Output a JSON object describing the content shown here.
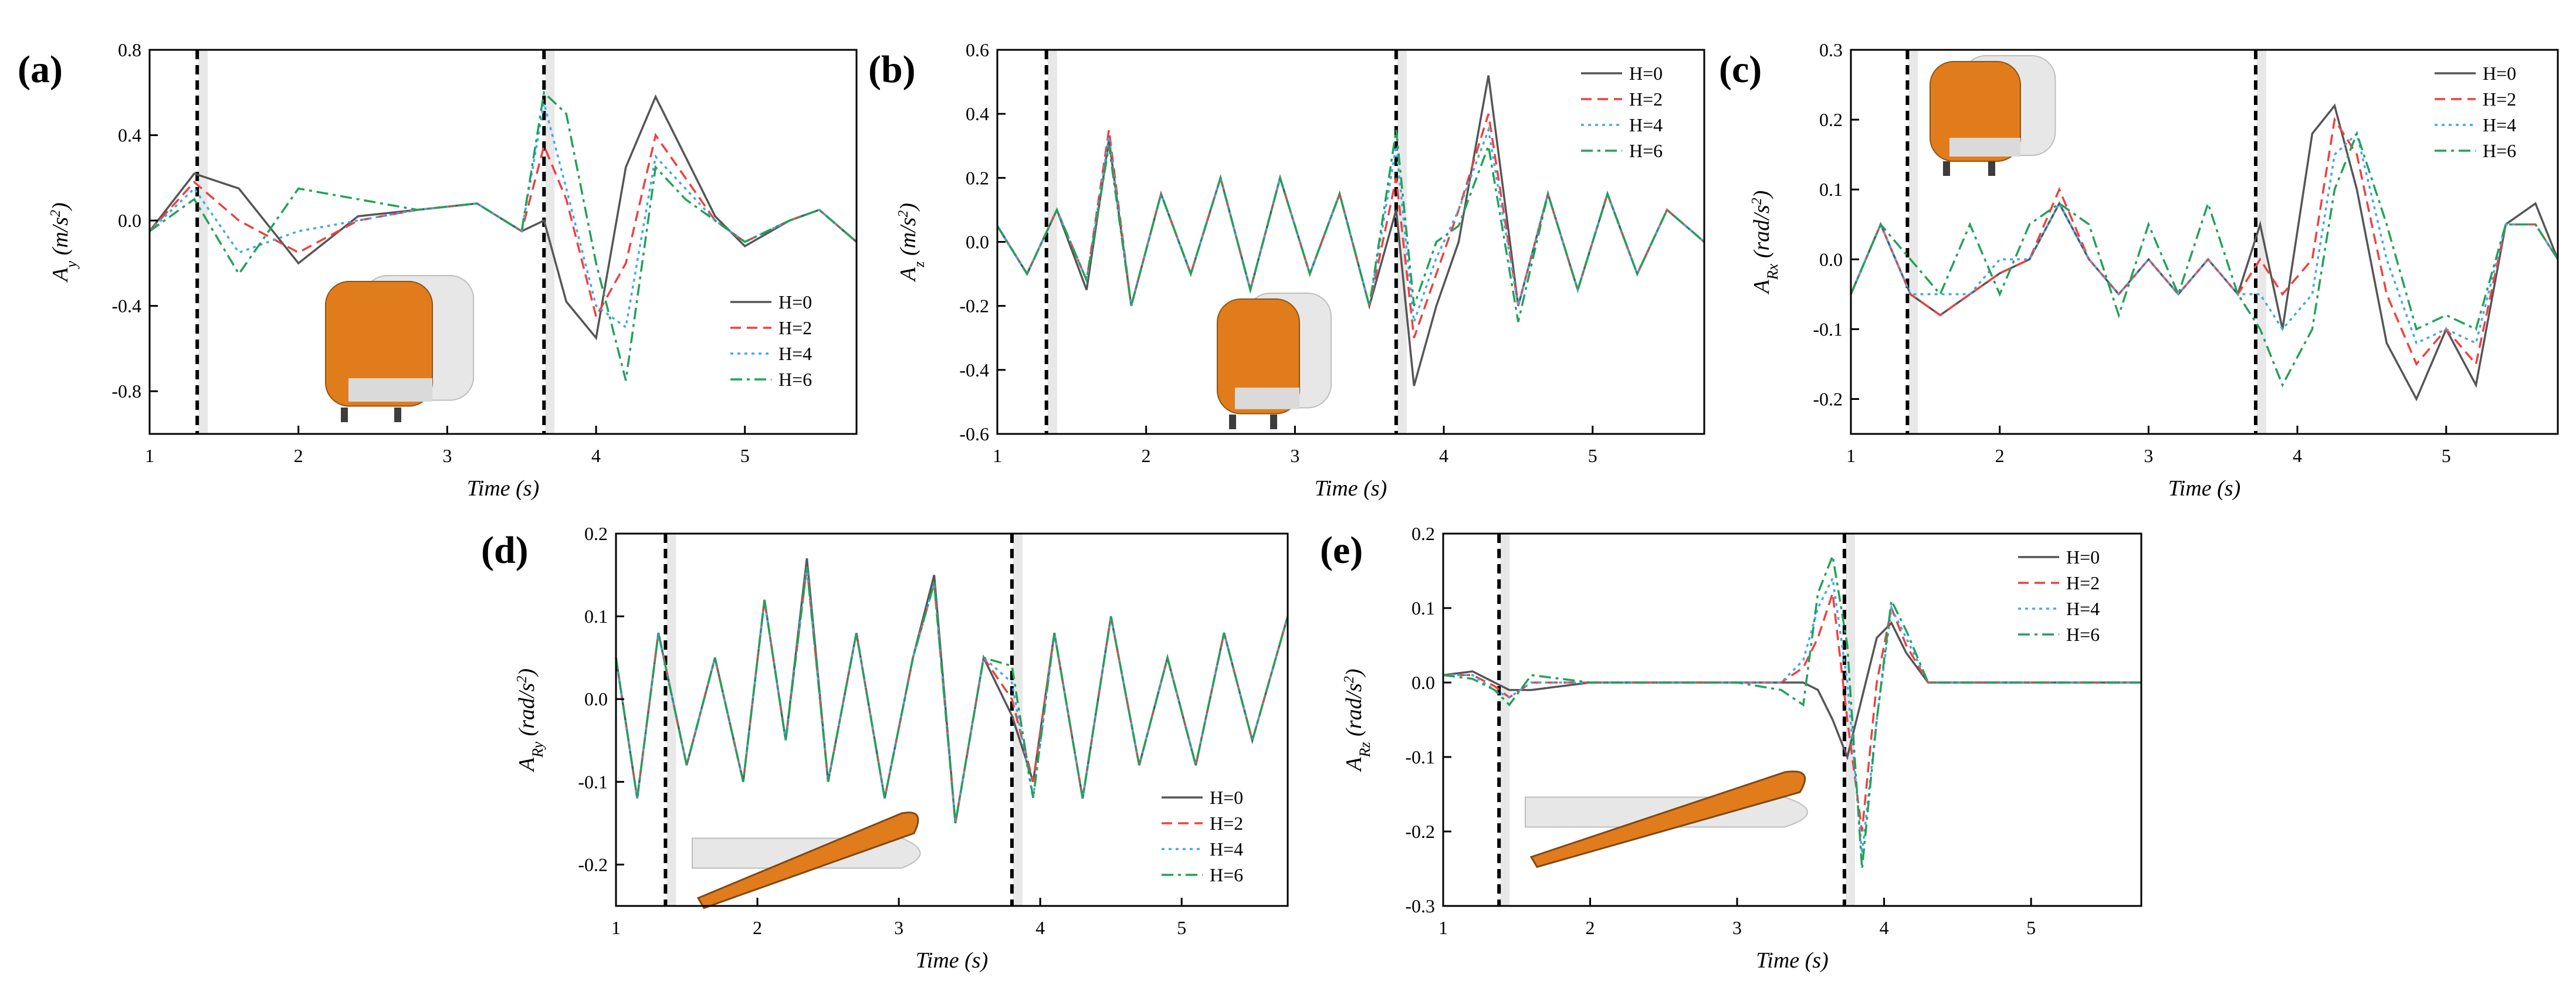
{
  "figure": {
    "colors": {
      "H=0": "#555555",
      "H=2": "#ef4040",
      "H=4": "#3ea8ef",
      "H=6": "#21a15a",
      "marker": "#000000",
      "train": "#e07510"
    }
  },
  "chart_data": [
    {
      "panel": "(a)",
      "type": "line",
      "title": "",
      "xlabel": "Time (s)",
      "ylabel_main": "A",
      "ylabel_sub": "y",
      "ylabel_unit": "(m/s",
      "ylabel_unit_end": ")",
      "xlim": [
        1,
        5.75
      ],
      "ylim": [
        -1.0,
        0.8
      ],
      "xticks": [
        1,
        2,
        3,
        4,
        5
      ],
      "xtick_labels": [
        "1",
        "2",
        "3",
        "4",
        "5"
      ],
      "yticks": [
        -0.8,
        -0.4,
        0.0,
        0.4,
        0.8
      ],
      "ytick_labels": [
        "-0.8",
        "-0.4",
        "0.0",
        "0.4",
        "0.8"
      ],
      "markers": [
        1.32,
        3.65
      ],
      "legend": "bottom-right",
      "legend_entries": [
        "H=0",
        "H=2",
        "H=4",
        "H=6"
      ],
      "x": [
        1.0,
        1.3,
        1.6,
        2.0,
        2.4,
        2.8,
        3.2,
        3.5,
        3.65,
        3.8,
        4.0,
        4.2,
        4.4,
        4.6,
        4.8,
        5.0,
        5.3,
        5.5,
        5.75
      ],
      "series": [
        {
          "name": "H=0",
          "values": [
            -0.05,
            0.22,
            0.15,
            -0.2,
            0.02,
            0.05,
            0.08,
            -0.05,
            0.0,
            -0.38,
            -0.55,
            0.25,
            0.58,
            0.3,
            0.02,
            -0.12,
            0.0,
            0.05,
            -0.1
          ]
        },
        {
          "name": "H=2",
          "values": [
            -0.05,
            0.18,
            0.0,
            -0.15,
            0.0,
            0.05,
            0.08,
            -0.05,
            0.35,
            0.1,
            -0.45,
            -0.2,
            0.4,
            0.2,
            0.0,
            -0.1,
            0.0,
            0.05,
            -0.1
          ]
        },
        {
          "name": "H=4",
          "values": [
            -0.05,
            0.15,
            -0.15,
            -0.05,
            0.0,
            0.05,
            0.08,
            -0.05,
            0.55,
            0.15,
            -0.4,
            -0.5,
            0.3,
            0.15,
            0.0,
            -0.1,
            0.0,
            0.05,
            -0.1
          ]
        },
        {
          "name": "H=6",
          "values": [
            -0.05,
            0.1,
            -0.25,
            0.15,
            0.1,
            0.05,
            0.08,
            -0.05,
            0.6,
            0.5,
            -0.2,
            -0.75,
            0.25,
            0.1,
            0.0,
            -0.1,
            0.0,
            0.05,
            -0.1
          ]
        }
      ]
    },
    {
      "panel": "(b)",
      "type": "line",
      "title": "",
      "xlabel": "Time (s)",
      "ylabel_main": "A",
      "ylabel_sub": "z",
      "ylabel_unit": "(m/s",
      "ylabel_unit_end": ")",
      "xlim": [
        1,
        5.75
      ],
      "ylim": [
        -0.6,
        0.6
      ],
      "xticks": [
        1,
        2,
        3,
        4,
        5
      ],
      "xtick_labels": [
        "1",
        "2",
        "3",
        "4",
        "5"
      ],
      "yticks": [
        -0.6,
        -0.4,
        -0.2,
        0.0,
        0.2,
        0.4,
        0.6
      ],
      "ytick_labels": [
        "-0.6",
        "-0.4",
        "-0.2",
        "0.0",
        "0.2",
        "0.4",
        "0.6"
      ],
      "markers": [
        1.33,
        3.68
      ],
      "legend": "top-right",
      "legend_entries": [
        "H=0",
        "H=2",
        "H=4",
        "H=6"
      ],
      "x": [
        1.0,
        1.2,
        1.4,
        1.6,
        1.75,
        1.9,
        2.1,
        2.3,
        2.5,
        2.7,
        2.9,
        3.1,
        3.3,
        3.5,
        3.68,
        3.8,
        3.95,
        4.1,
        4.3,
        4.5,
        4.7,
        4.9,
        5.1,
        5.3,
        5.5,
        5.75
      ],
      "series": [
        {
          "name": "H=0",
          "values": [
            0.05,
            -0.1,
            0.1,
            -0.15,
            0.32,
            -0.2,
            0.15,
            -0.1,
            0.2,
            -0.15,
            0.2,
            -0.1,
            0.15,
            -0.2,
            0.1,
            -0.45,
            -0.2,
            0.0,
            0.52,
            -0.2,
            0.15,
            -0.15,
            0.15,
            -0.1,
            0.1,
            0.0
          ]
        },
        {
          "name": "H=2",
          "values": [
            0.05,
            -0.1,
            0.1,
            -0.12,
            0.35,
            -0.2,
            0.15,
            -0.1,
            0.2,
            -0.15,
            0.2,
            -0.1,
            0.15,
            -0.2,
            0.2,
            -0.3,
            -0.1,
            0.1,
            0.4,
            -0.2,
            0.15,
            -0.15,
            0.15,
            -0.1,
            0.1,
            0.0
          ]
        },
        {
          "name": "H=4",
          "values": [
            0.05,
            -0.1,
            0.1,
            -0.12,
            0.33,
            -0.2,
            0.15,
            -0.1,
            0.2,
            -0.15,
            0.2,
            -0.1,
            0.15,
            -0.2,
            0.3,
            -0.25,
            -0.05,
            0.1,
            0.35,
            -0.2,
            0.15,
            -0.15,
            0.15,
            -0.1,
            0.1,
            0.0
          ]
        },
        {
          "name": "H=6",
          "values": [
            0.05,
            -0.1,
            0.1,
            -0.12,
            0.3,
            -0.2,
            0.15,
            -0.1,
            0.2,
            -0.15,
            0.2,
            -0.1,
            0.15,
            -0.2,
            0.35,
            -0.2,
            0.0,
            0.05,
            0.3,
            -0.25,
            0.15,
            -0.15,
            0.15,
            -0.1,
            0.1,
            0.0
          ]
        }
      ]
    },
    {
      "panel": "(c)",
      "type": "line",
      "title": "",
      "xlabel": "Time (s)",
      "ylabel_main": "A",
      "ylabel_sub": "Rx",
      "ylabel_unit": "(rad/s",
      "ylabel_unit_end": ")",
      "xlim": [
        1,
        5.75
      ],
      "ylim": [
        -0.25,
        0.3
      ],
      "xticks": [
        1,
        2,
        3,
        4,
        5
      ],
      "xtick_labels": [
        "1",
        "2",
        "3",
        "4",
        "5"
      ],
      "yticks": [
        -0.2,
        -0.1,
        0.0,
        0.1,
        0.2,
        0.3
      ],
      "ytick_labels": [
        "-0.2",
        "-0.1",
        "0.0",
        "0.1",
        "0.2",
        "0.3"
      ],
      "markers": [
        1.38,
        3.72
      ],
      "legend": "top-right",
      "legend_entries": [
        "H=0",
        "H=2",
        "H=4",
        "H=6"
      ],
      "x": [
        1.0,
        1.2,
        1.4,
        1.6,
        1.8,
        2.0,
        2.2,
        2.4,
        2.6,
        2.8,
        3.0,
        3.2,
        3.4,
        3.6,
        3.75,
        3.9,
        4.1,
        4.25,
        4.4,
        4.6,
        4.8,
        5.0,
        5.2,
        5.4,
        5.6,
        5.75
      ],
      "series": [
        {
          "name": "H=0",
          "values": [
            -0.05,
            0.05,
            -0.05,
            -0.08,
            -0.05,
            -0.02,
            0.0,
            0.08,
            0.0,
            -0.05,
            0.0,
            -0.05,
            0.0,
            -0.05,
            0.05,
            -0.1,
            0.18,
            0.22,
            0.1,
            -0.12,
            -0.2,
            -0.1,
            -0.18,
            0.05,
            0.08,
            0.0
          ]
        },
        {
          "name": "H=2",
          "values": [
            -0.05,
            0.05,
            -0.05,
            -0.08,
            -0.05,
            -0.02,
            0.0,
            0.1,
            0.0,
            -0.05,
            0.0,
            -0.05,
            0.0,
            -0.05,
            0.0,
            -0.05,
            0.0,
            0.2,
            0.15,
            -0.05,
            -0.15,
            -0.1,
            -0.15,
            0.05,
            0.05,
            0.0
          ]
        },
        {
          "name": "H=4",
          "values": [
            -0.05,
            0.05,
            -0.05,
            -0.05,
            -0.05,
            0.0,
            0.0,
            0.08,
            0.0,
            -0.05,
            0.0,
            -0.05,
            0.0,
            -0.05,
            -0.05,
            -0.1,
            -0.05,
            0.15,
            0.18,
            0.0,
            -0.12,
            -0.1,
            -0.12,
            0.05,
            0.05,
            0.0
          ]
        },
        {
          "name": "H=6",
          "values": [
            -0.05,
            0.05,
            0.0,
            -0.05,
            0.05,
            -0.05,
            0.05,
            0.08,
            0.05,
            -0.08,
            0.05,
            -0.05,
            0.08,
            -0.05,
            -0.1,
            -0.18,
            -0.1,
            0.1,
            0.18,
            0.05,
            -0.1,
            -0.08,
            -0.1,
            0.05,
            0.05,
            0.0
          ]
        }
      ]
    },
    {
      "panel": "(d)",
      "type": "line",
      "title": "",
      "xlabel": "Time (s)",
      "ylabel_main": "A",
      "ylabel_sub": "Ry",
      "ylabel_unit": "(rad/s",
      "ylabel_unit_end": ")",
      "xlim": [
        1,
        5.75
      ],
      "ylim": [
        -0.25,
        0.2
      ],
      "xticks": [
        1,
        2,
        3,
        4,
        5
      ],
      "xtick_labels": [
        "1",
        "2",
        "3",
        "4",
        "5"
      ],
      "yticks": [
        -0.2,
        -0.1,
        0.0,
        0.1,
        0.2
      ],
      "ytick_labels": [
        "-0.2",
        "-0.1",
        "0.0",
        "0.1",
        "0.2"
      ],
      "markers": [
        1.35,
        3.8
      ],
      "legend": "bottom-right",
      "legend_entries": [
        "H=0",
        "H=2",
        "H=4",
        "H=6"
      ],
      "x": [
        1.0,
        1.15,
        1.3,
        1.5,
        1.7,
        1.9,
        2.05,
        2.2,
        2.35,
        2.5,
        2.7,
        2.9,
        3.1,
        3.25,
        3.4,
        3.6,
        3.8,
        3.95,
        4.1,
        4.3,
        4.5,
        4.7,
        4.9,
        5.1,
        5.3,
        5.5,
        5.75
      ],
      "series": [
        {
          "name": "H=0",
          "values": [
            0.05,
            -0.12,
            0.08,
            -0.08,
            0.05,
            -0.1,
            0.12,
            -0.05,
            0.17,
            -0.1,
            0.08,
            -0.12,
            0.05,
            0.15,
            -0.15,
            0.05,
            -0.02,
            -0.1,
            0.08,
            -0.12,
            0.1,
            -0.08,
            0.05,
            -0.08,
            0.08,
            -0.05,
            0.1
          ]
        },
        {
          "name": "H=2",
          "values": [
            0.05,
            -0.12,
            0.08,
            -0.08,
            0.05,
            -0.1,
            0.12,
            -0.05,
            0.16,
            -0.1,
            0.08,
            -0.12,
            0.05,
            0.14,
            -0.15,
            0.05,
            0.0,
            -0.1,
            0.08,
            -0.12,
            0.1,
            -0.08,
            0.05,
            -0.08,
            0.08,
            -0.05,
            0.1
          ]
        },
        {
          "name": "H=4",
          "values": [
            0.05,
            -0.12,
            0.08,
            -0.08,
            0.05,
            -0.1,
            0.12,
            -0.05,
            0.16,
            -0.1,
            0.08,
            -0.12,
            0.05,
            0.14,
            -0.15,
            0.05,
            0.02,
            -0.12,
            0.08,
            -0.12,
            0.1,
            -0.08,
            0.05,
            -0.08,
            0.08,
            -0.05,
            0.1
          ]
        },
        {
          "name": "H=6",
          "values": [
            0.05,
            -0.12,
            0.08,
            -0.08,
            0.05,
            -0.1,
            0.12,
            -0.05,
            0.16,
            -0.1,
            0.08,
            -0.12,
            0.05,
            0.14,
            -0.15,
            0.05,
            0.04,
            -0.12,
            0.08,
            -0.12,
            0.1,
            -0.08,
            0.05,
            -0.08,
            0.08,
            -0.05,
            0.1
          ]
        }
      ]
    },
    {
      "panel": "(e)",
      "type": "line",
      "title": "",
      "xlabel": "Time (s)",
      "ylabel_main": "A",
      "ylabel_sub": "Rz",
      "ylabel_unit": "(rad/s",
      "ylabel_unit_end": ")",
      "xlim": [
        1,
        5.75
      ],
      "ylim": [
        -0.3,
        0.2
      ],
      "xticks": [
        1,
        2,
        3,
        4,
        5
      ],
      "xtick_labels": [
        "1",
        "2",
        "3",
        "4",
        "5"
      ],
      "yticks": [
        -0.3,
        -0.2,
        -0.1,
        0.0,
        0.1,
        0.2
      ],
      "ytick_labels": [
        "-0.3",
        "-0.2",
        "-0.1",
        "0.0",
        "0.1",
        "0.2"
      ],
      "markers": [
        1.38,
        3.73
      ],
      "legend": "top-right",
      "legend_entries": [
        "H=0",
        "H=2",
        "H=4",
        "H=6"
      ],
      "x": [
        1.0,
        1.2,
        1.35,
        1.45,
        1.6,
        2.0,
        2.5,
        3.0,
        3.3,
        3.45,
        3.55,
        3.65,
        3.75,
        3.85,
        3.95,
        4.05,
        4.15,
        4.3,
        4.5,
        5.0,
        5.75
      ],
      "series": [
        {
          "name": "H=0",
          "values": [
            0.01,
            0.015,
            0.0,
            -0.01,
            -0.01,
            0.0,
            0.0,
            0.0,
            0.0,
            0.0,
            -0.01,
            -0.05,
            -0.1,
            -0.02,
            0.06,
            0.08,
            0.04,
            0.0,
            0.0,
            0.0,
            0.0
          ]
        },
        {
          "name": "H=2",
          "values": [
            0.01,
            0.01,
            -0.005,
            -0.02,
            0.0,
            0.0,
            0.0,
            0.0,
            0.0,
            0.02,
            0.06,
            0.12,
            -0.05,
            -0.2,
            0.0,
            0.1,
            0.05,
            0.0,
            0.0,
            0.0,
            0.0
          ]
        },
        {
          "name": "H=4",
          "values": [
            0.01,
            0.01,
            -0.01,
            -0.02,
            0.0,
            0.0,
            0.0,
            0.0,
            0.0,
            0.03,
            0.1,
            0.14,
            0.0,
            -0.23,
            -0.05,
            0.1,
            0.06,
            0.0,
            0.0,
            0.0,
            0.0
          ]
        },
        {
          "name": "H=6",
          "values": [
            0.01,
            0.005,
            -0.01,
            -0.03,
            0.01,
            0.0,
            0.0,
            0.0,
            -0.01,
            -0.03,
            0.12,
            0.17,
            0.05,
            -0.25,
            -0.05,
            0.11,
            0.07,
            0.0,
            0.0,
            0.0,
            0.0
          ]
        }
      ]
    }
  ]
}
